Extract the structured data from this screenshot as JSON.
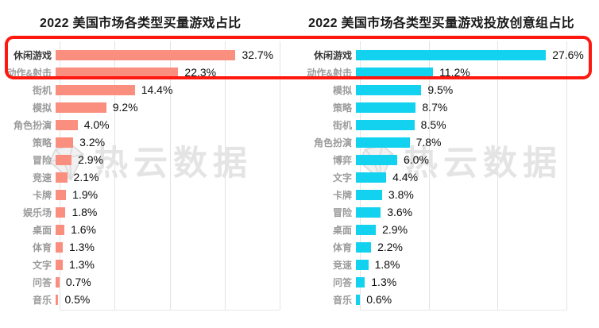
{
  "watermark": {
    "text": "热云数据"
  },
  "highlight_box": {
    "color": "#ff1810",
    "highlighted_category": "休闲游戏"
  },
  "chart_data": [
    {
      "type": "bar",
      "title": "2022 美国市场各类型买量游戏占比",
      "orientation": "horizontal",
      "categories": [
        "休闲游戏",
        "动作&射击",
        "街机",
        "模拟",
        "角色扮演",
        "策略",
        "冒险",
        "竞速",
        "卡牌",
        "娱乐场",
        "桌面",
        "体育",
        "文字",
        "问答",
        "音乐"
      ],
      "values": [
        32.7,
        22.3,
        14.4,
        9.2,
        4.0,
        3.2,
        2.9,
        2.1,
        1.9,
        1.8,
        1.6,
        1.3,
        1.3,
        0.7,
        0.5
      ],
      "unit": "%",
      "bar_color": "#fa8e7f",
      "axis_max": 40,
      "grid_step": 10,
      "grid": true,
      "highlight_index": 0,
      "value_label_format": "one-decimal-percent"
    },
    {
      "type": "bar",
      "title": "2022 美国市场各类型买量游戏投放创意组占比",
      "orientation": "horizontal",
      "categories": [
        "休闲游戏",
        "动作&射击",
        "模拟",
        "策略",
        "街机",
        "角色扮演",
        "博弈",
        "文字",
        "卡牌",
        "冒险",
        "桌面",
        "体育",
        "竞速",
        "问答",
        "音乐"
      ],
      "values": [
        27.6,
        11.2,
        9.5,
        8.7,
        8.5,
        7.8,
        6.0,
        4.4,
        3.8,
        3.6,
        2.9,
        2.2,
        1.8,
        1.3,
        0.6
      ],
      "unit": "%",
      "bar_color": "#12d2f0",
      "axis_max": 30,
      "grid_step": 10,
      "grid": true,
      "highlight_index": 0,
      "value_label_format": "one-decimal-percent"
    }
  ]
}
